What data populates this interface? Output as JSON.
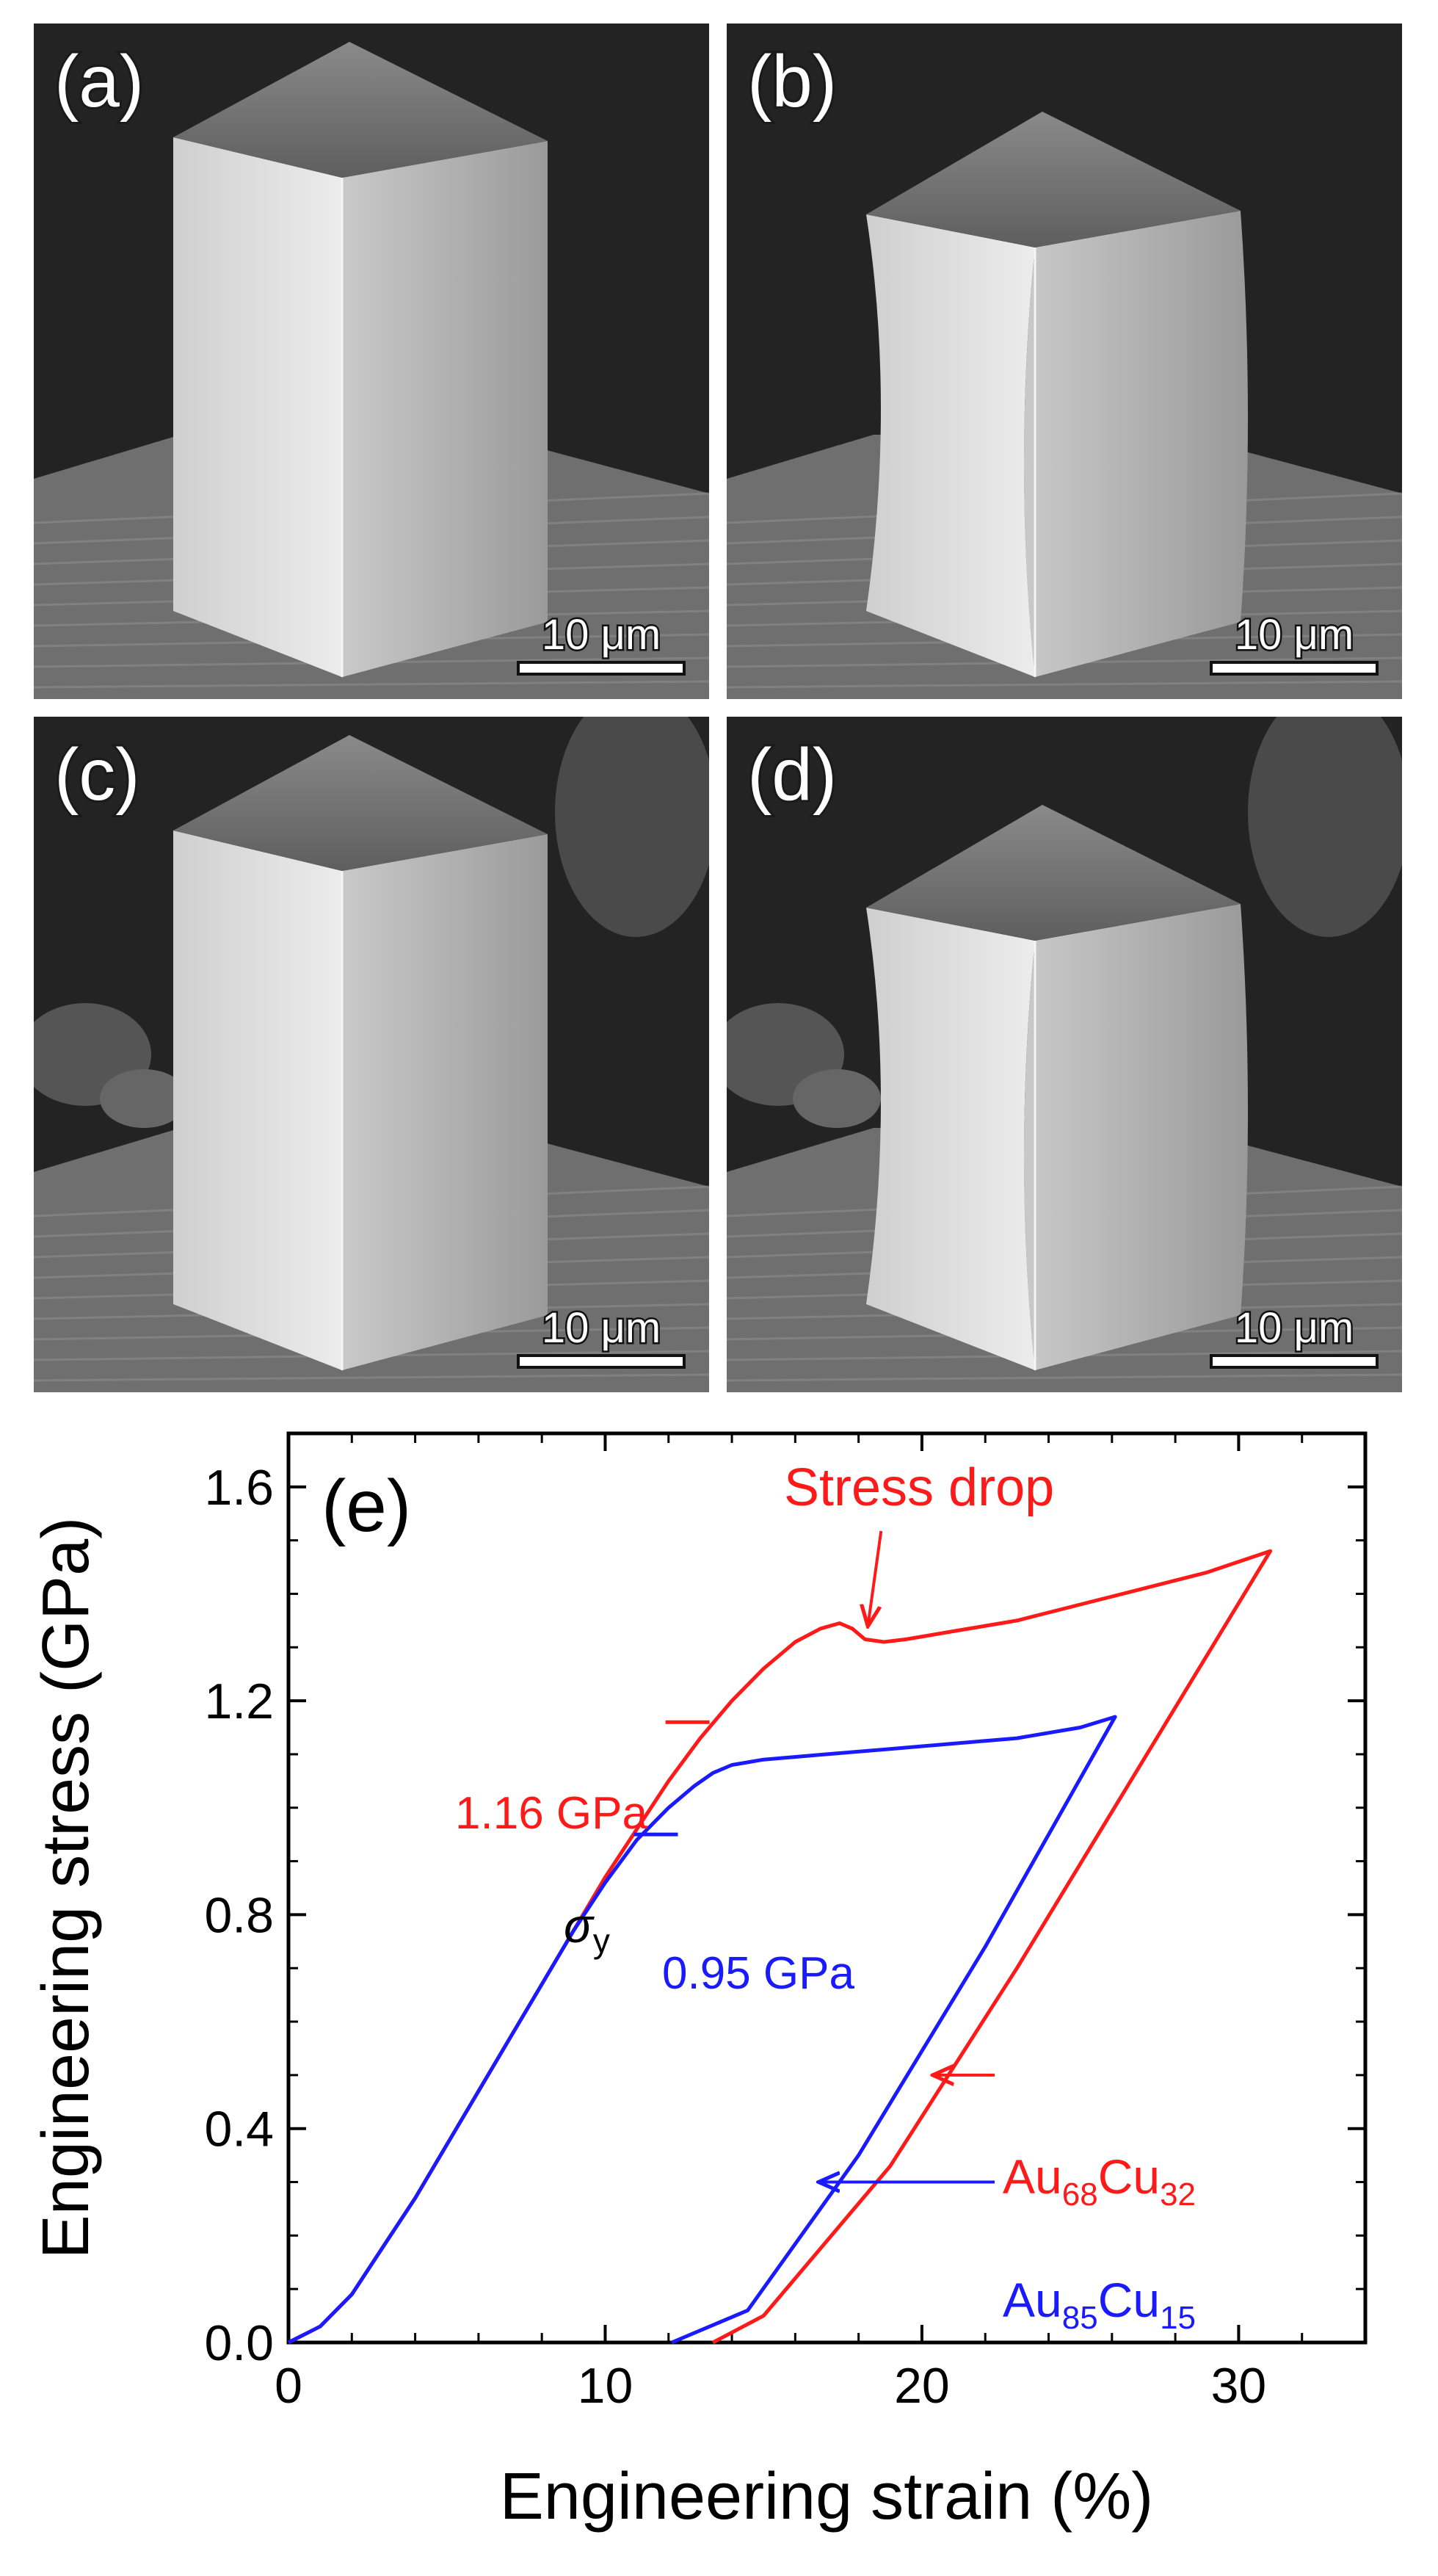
{
  "panels": [
    {
      "label": "(a)",
      "scale": "10 μm",
      "variant": "pristine",
      "background": "dark"
    },
    {
      "label": "(b)",
      "scale": "10 μm",
      "variant": "deformed",
      "background": "dark"
    },
    {
      "label": "(c)",
      "scale": "10 μm",
      "variant": "pristine",
      "background": "textured"
    },
    {
      "label": "(d)",
      "scale": "10 μm",
      "variant": "deformed",
      "background": "textured"
    }
  ],
  "chart_data": {
    "type": "line",
    "panel_label": "(e)",
    "xlabel": "Engineering strain (%)",
    "ylabel": "Engineering stress (GPa)",
    "xlim": [
      0,
      34
    ],
    "ylim": [
      0,
      1.7
    ],
    "xticks": [
      0,
      10,
      20,
      30
    ],
    "xtick_labels": [
      "0",
      "10",
      "20",
      "30"
    ],
    "yticks": [
      0.0,
      0.4,
      0.8,
      1.2,
      1.6
    ],
    "ytick_labels": [
      "0.0",
      "0.4",
      "0.8",
      "1.2",
      "1.6"
    ],
    "series": [
      {
        "name": "Au68Cu32",
        "legend_base1": "Au",
        "legend_sub1": "68",
        "legend_base2": "Cu",
        "legend_sub2": "32",
        "color": "#ff1a1a",
        "x": [
          0,
          1,
          2,
          3,
          4,
          5,
          6,
          7,
          8,
          9,
          10,
          11,
          12,
          13,
          14,
          15,
          16,
          16.8,
          17.4,
          17.8,
          18.2,
          18.8,
          19.5,
          21,
          23,
          25,
          27,
          29,
          31,
          27,
          23,
          19,
          15,
          13.4
        ],
        "y": [
          0,
          0.03,
          0.09,
          0.18,
          0.27,
          0.37,
          0.47,
          0.57,
          0.67,
          0.77,
          0.87,
          0.96,
          1.05,
          1.13,
          1.2,
          1.26,
          1.31,
          1.335,
          1.345,
          1.335,
          1.315,
          1.31,
          1.315,
          1.33,
          1.35,
          1.38,
          1.41,
          1.44,
          1.48,
          1.09,
          0.7,
          0.33,
          0.05,
          0
        ]
      },
      {
        "name": "Au85Cu15",
        "legend_base1": "Au",
        "legend_sub1": "85",
        "legend_base2": "Cu",
        "legend_sub2": "15",
        "color": "#1a1aff",
        "x": [
          0,
          1,
          2,
          3,
          4,
          5,
          6,
          7,
          8,
          9,
          10,
          11,
          12,
          12.8,
          13.4,
          14,
          14.5,
          15,
          17,
          19,
          21,
          23,
          25,
          26.1,
          22,
          18,
          14.5,
          12.1
        ],
        "y": [
          0,
          0.03,
          0.09,
          0.18,
          0.27,
          0.37,
          0.47,
          0.57,
          0.67,
          0.77,
          0.86,
          0.94,
          1.0,
          1.04,
          1.065,
          1.08,
          1.085,
          1.09,
          1.1,
          1.11,
          1.12,
          1.13,
          1.15,
          1.17,
          0.74,
          0.35,
          0.06,
          0
        ]
      }
    ],
    "annotations": {
      "stress_drop": {
        "text": "Stress drop",
        "x": 18.2,
        "y": 1.32
      },
      "red_yield": {
        "text": "1.16 GPa",
        "x": 12.6,
        "y": 1.16
      },
      "sigma_y": {
        "symbol": "σ",
        "subscript": "y"
      },
      "blue_yield": {
        "text": "0.95 GPa",
        "x": 11.6,
        "y": 0.95
      },
      "au68_arrow_point": {
        "x": 20.2,
        "y": 0.5
      },
      "au85_arrow_point": {
        "x": 16.6,
        "y": 0.3
      }
    }
  }
}
